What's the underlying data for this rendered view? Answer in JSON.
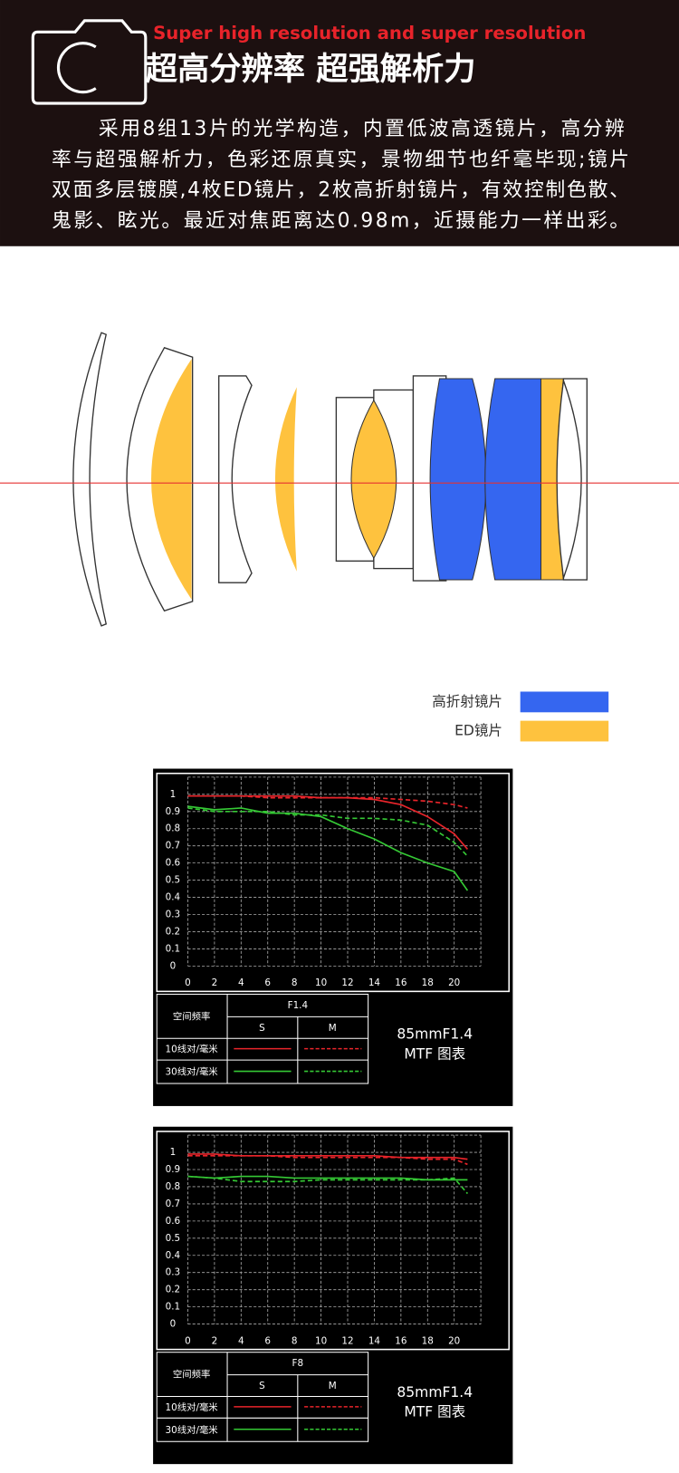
{
  "header": {
    "subtitle": "Super high resolution and super resolution",
    "title": "超高分辨率 超强解析力",
    "lines": [
      "采用8组13片的光学构造，内置低波高透镜片，高分辨",
      "率与超强解析力，色彩还原真实，景物细节也纤毫毕现;镜片",
      "双面多层镀膜,4枚ED镜片，2枚高折射镜片，有效控制色散、",
      "鬼影、眩光。最近对焦距离达0.98m，近摄能力一样出彩。"
    ]
  },
  "lens_legend": [
    {
      "label": "高折射镜片",
      "color": "#3566f0"
    },
    {
      "label": "ED镜片",
      "color": "#fec23e"
    }
  ],
  "chart_data": [
    {
      "type": "line",
      "x": [
        0,
        2,
        4,
        6,
        8,
        10,
        12,
        14,
        16,
        18,
        20,
        21
      ],
      "xlim": [
        0,
        22
      ],
      "xticks": [
        0,
        2,
        4,
        6,
        8,
        10,
        12,
        14,
        16,
        18,
        20
      ],
      "ylim": [
        0,
        1.1
      ],
      "yticks": [
        0,
        0.1,
        0.2,
        0.3,
        0.4,
        0.5,
        0.6,
        0.7,
        0.8,
        0.9,
        1
      ],
      "grid": true,
      "series": [
        {
          "color": "#e8242a",
          "style": "solid",
          "values": [
            0.99,
            0.99,
            0.99,
            0.99,
            0.99,
            0.98,
            0.98,
            0.97,
            0.94,
            0.87,
            0.77,
            0.68
          ]
        },
        {
          "color": "#e8242a",
          "style": "dashed",
          "values": [
            0.99,
            0.99,
            0.99,
            0.98,
            0.98,
            0.98,
            0.98,
            0.98,
            0.97,
            0.96,
            0.94,
            0.92
          ]
        },
        {
          "color": "#35c935",
          "style": "solid",
          "values": [
            0.93,
            0.91,
            0.92,
            0.89,
            0.89,
            0.87,
            0.8,
            0.74,
            0.66,
            0.6,
            0.55,
            0.44
          ]
        },
        {
          "color": "#35c935",
          "style": "dashed",
          "values": [
            0.92,
            0.9,
            0.9,
            0.9,
            0.88,
            0.88,
            0.86,
            0.86,
            0.85,
            0.82,
            0.72,
            0.64
          ]
        }
      ],
      "legend_table": {
        "header": "空间频率",
        "aperture": "F1.4",
        "columns": [
          "S",
          "M"
        ],
        "rows": [
          "10线对/毫米",
          "30线对/毫米"
        ]
      },
      "caption": [
        "85mmF1.4",
        "MTF 图表"
      ]
    },
    {
      "type": "line",
      "x": [
        0,
        2,
        4,
        6,
        8,
        10,
        12,
        14,
        16,
        18,
        20,
        21
      ],
      "xlim": [
        0,
        22
      ],
      "xticks": [
        0,
        2,
        4,
        6,
        8,
        10,
        12,
        14,
        16,
        18,
        20
      ],
      "ylim": [
        0,
        1.1
      ],
      "yticks": [
        0,
        0.1,
        0.2,
        0.3,
        0.4,
        0.5,
        0.6,
        0.7,
        0.8,
        0.9,
        1
      ],
      "grid": true,
      "series": [
        {
          "color": "#e8242a",
          "style": "solid",
          "values": [
            0.99,
            0.99,
            0.98,
            0.98,
            0.98,
            0.98,
            0.98,
            0.98,
            0.97,
            0.97,
            0.97,
            0.96
          ]
        },
        {
          "color": "#e8242a",
          "style": "dashed",
          "values": [
            0.98,
            0.98,
            0.98,
            0.98,
            0.97,
            0.97,
            0.97,
            0.97,
            0.97,
            0.96,
            0.96,
            0.93
          ]
        },
        {
          "color": "#35c935",
          "style": "solid",
          "values": [
            0.86,
            0.85,
            0.86,
            0.86,
            0.85,
            0.85,
            0.85,
            0.85,
            0.85,
            0.84,
            0.84,
            0.84
          ]
        },
        {
          "color": "#35c935",
          "style": "dashed",
          "values": [
            0.86,
            0.85,
            0.83,
            0.83,
            0.83,
            0.84,
            0.84,
            0.84,
            0.84,
            0.84,
            0.85,
            0.76
          ]
        }
      ],
      "legend_table": {
        "header": "空间频率",
        "aperture": "F8",
        "columns": [
          "S",
          "M"
        ],
        "rows": [
          "10线对/毫米",
          "30线对/毫米"
        ]
      },
      "caption": [
        "85mmF1.4",
        "MTF 图表"
      ]
    }
  ]
}
